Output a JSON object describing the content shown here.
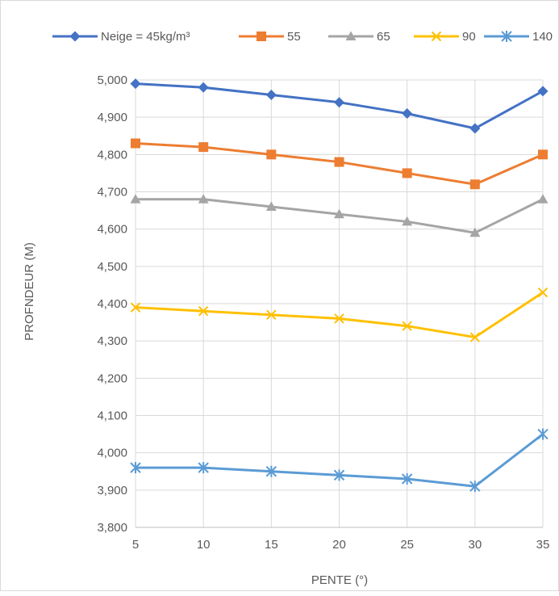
{
  "chart_data": {
    "type": "line",
    "title": "",
    "xlabel": "PENTE (°)",
    "ylabel": "PROFNDEUR (M)",
    "x": [
      5,
      10,
      15,
      20,
      25,
      30,
      35
    ],
    "ylim": [
      3800,
      5000
    ],
    "ytick_step": 100,
    "ytick_labels": [
      "3,800",
      "3,900",
      "4,000",
      "4,100",
      "4,200",
      "4,300",
      "4,400",
      "4,500",
      "4,600",
      "4,700",
      "4,800",
      "4,900",
      "5,000"
    ],
    "grid": true,
    "legend_position": "top",
    "series": [
      {
        "name": "Neige = 45kg/m³",
        "color": "#4472C4",
        "marker": "diamond",
        "values": [
          4990,
          4980,
          4960,
          4940,
          4910,
          4870,
          4970
        ]
      },
      {
        "name": "55",
        "color": "#ED7D31",
        "marker": "square",
        "values": [
          4830,
          4820,
          4800,
          4780,
          4750,
          4720,
          4800
        ]
      },
      {
        "name": "65",
        "color": "#A5A5A5",
        "marker": "triangle",
        "values": [
          4680,
          4680,
          4660,
          4640,
          4620,
          4590,
          4680
        ]
      },
      {
        "name": "90",
        "color": "#FFC000",
        "marker": "x",
        "values": [
          4390,
          4380,
          4370,
          4360,
          4340,
          4310,
          4430
        ]
      },
      {
        "name": "140",
        "color": "#5B9BD5",
        "marker": "star",
        "values": [
          3960,
          3960,
          3950,
          3940,
          3930,
          3910,
          4050
        ]
      }
    ]
  }
}
